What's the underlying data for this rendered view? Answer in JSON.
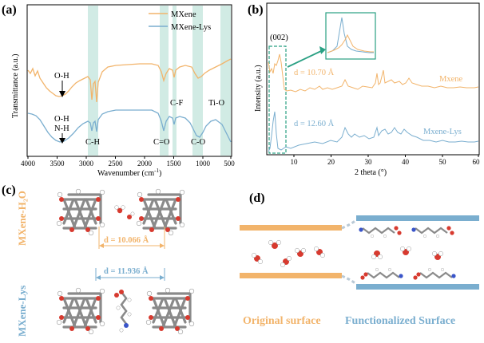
{
  "figure": {
    "panel_a": {
      "label": "(a)",
      "ylabel": "Transmittance (a.u.)",
      "xlabel": "Wavenumber (cm",
      "xlabel_sup": "-1",
      "xlabel_end": ")",
      "xticks": [
        "4000",
        "3500",
        "3000",
        "2500",
        "2000",
        "1500",
        "1000",
        "500"
      ],
      "legend": [
        "MXene",
        "MXene-Lys"
      ],
      "ann_oh_top": "O-H",
      "ann_oh_bot": "O-H",
      "ann_nh": "N-H",
      "ann_ch": "C-H",
      "ann_co_double": "C=O",
      "ann_cf": "C-F",
      "ann_co": "C-O",
      "ann_tio": "Ti-O"
    },
    "panel_b": {
      "label": "(b)",
      "ylabel": "Intensity (a.u.)",
      "xlabel": "2 theta (°)",
      "xticks": [
        "10",
        "20",
        "30",
        "40",
        "50",
        "60"
      ],
      "peak": "(002)",
      "d_top": "d = 10.70 Å",
      "d_bot": "d = 12.60 Å",
      "series_top": "Mxene",
      "series_bot": "Mxene-Lys"
    },
    "panel_c": {
      "label": "(c)",
      "row1": "MXene-H₂O",
      "row2": "MXene-Lys",
      "d1": "d = 10.066 Å",
      "d2": "d = 11.936 Å"
    },
    "panel_d": {
      "label": "(d)",
      "left_caption": "Original surface",
      "right_caption": "Functionalized Surface"
    }
  },
  "colors": {
    "orange": "#f2b46b",
    "blue": "#7aaecf",
    "teal_band": "#bfe3da",
    "teal_arrow": "#2aa083"
  }
}
